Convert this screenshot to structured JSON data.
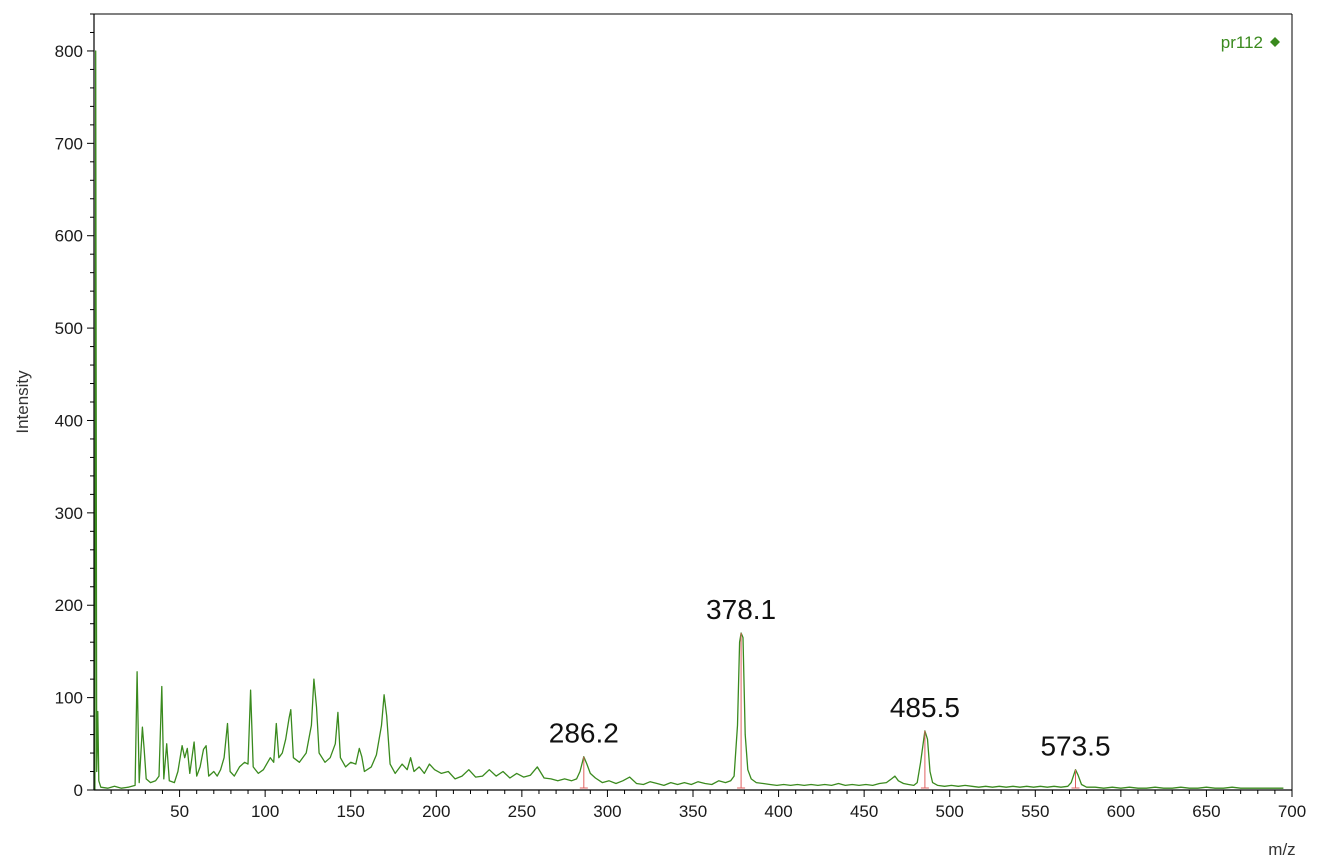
{
  "chart_data": {
    "type": "line",
    "xlabel": "m/z",
    "ylabel": "Intensity",
    "xlim": [
      0,
      700
    ],
    "ylim": [
      0,
      840
    ],
    "x_ticks": [
      50,
      100,
      150,
      200,
      250,
      300,
      350,
      400,
      450,
      500,
      550,
      600,
      650,
      700
    ],
    "y_ticks": [
      0,
      100,
      200,
      300,
      400,
      500,
      600,
      700,
      800
    ],
    "grid": false,
    "legend_position": "top-right",
    "series_color": "#3a8a1e",
    "marker_color": "#e06060",
    "series": [
      {
        "name": "pr112",
        "points": [
          [
            0.5,
            0
          ],
          [
            1.0,
            800
          ],
          [
            1.6,
            20
          ],
          [
            2.2,
            85
          ],
          [
            2.8,
            10
          ],
          [
            4,
            3
          ],
          [
            8,
            2
          ],
          [
            12,
            4
          ],
          [
            16,
            2
          ],
          [
            20,
            3
          ],
          [
            24,
            5
          ],
          [
            25.2,
            128
          ],
          [
            26.4,
            8
          ],
          [
            28.3,
            68
          ],
          [
            29.3,
            45
          ],
          [
            30.5,
            12
          ],
          [
            33,
            8
          ],
          [
            36,
            10
          ],
          [
            38,
            15
          ],
          [
            39.6,
            112
          ],
          [
            40.8,
            12
          ],
          [
            42.5,
            50
          ],
          [
            44,
            10
          ],
          [
            47,
            8
          ],
          [
            49,
            20
          ],
          [
            51.5,
            48
          ],
          [
            53,
            35
          ],
          [
            54.5,
            45
          ],
          [
            56,
            18
          ],
          [
            58.5,
            52
          ],
          [
            60,
            15
          ],
          [
            62,
            25
          ],
          [
            64,
            44
          ],
          [
            65.5,
            48
          ],
          [
            67,
            15
          ],
          [
            70,
            20
          ],
          [
            72,
            15
          ],
          [
            74,
            22
          ],
          [
            76,
            35
          ],
          [
            78,
            72
          ],
          [
            79.5,
            20
          ],
          [
            82,
            15
          ],
          [
            85,
            25
          ],
          [
            88,
            30
          ],
          [
            90,
            28
          ],
          [
            91.5,
            108
          ],
          [
            93,
            25
          ],
          [
            96,
            18
          ],
          [
            99,
            22
          ],
          [
            103,
            35
          ],
          [
            105,
            30
          ],
          [
            106.5,
            72
          ],
          [
            108,
            35
          ],
          [
            110,
            40
          ],
          [
            112,
            55
          ],
          [
            114,
            78
          ],
          [
            115,
            87
          ],
          [
            116.5,
            35
          ],
          [
            120,
            30
          ],
          [
            124,
            40
          ],
          [
            127,
            70
          ],
          [
            128.5,
            120
          ],
          [
            130,
            90
          ],
          [
            131.5,
            40
          ],
          [
            135,
            30
          ],
          [
            138,
            35
          ],
          [
            141,
            50
          ],
          [
            142.5,
            84
          ],
          [
            144,
            35
          ],
          [
            147,
            25
          ],
          [
            150,
            30
          ],
          [
            153,
            28
          ],
          [
            155,
            45
          ],
          [
            156.5,
            36
          ],
          [
            158,
            20
          ],
          [
            162,
            25
          ],
          [
            165,
            38
          ],
          [
            168,
            70
          ],
          [
            169.5,
            103
          ],
          [
            171,
            80
          ],
          [
            173,
            28
          ],
          [
            176,
            18
          ],
          [
            180,
            28
          ],
          [
            183,
            22
          ],
          [
            185,
            35
          ],
          [
            187,
            20
          ],
          [
            190,
            25
          ],
          [
            193,
            18
          ],
          [
            196,
            28
          ],
          [
            199,
            22
          ],
          [
            203,
            18
          ],
          [
            207,
            20
          ],
          [
            211,
            12
          ],
          [
            215,
            15
          ],
          [
            219,
            22
          ],
          [
            223,
            14
          ],
          [
            227,
            15
          ],
          [
            231,
            22
          ],
          [
            235,
            15
          ],
          [
            239,
            20
          ],
          [
            243,
            13
          ],
          [
            247,
            18
          ],
          [
            251,
            14
          ],
          [
            255,
            16
          ],
          [
            259,
            25
          ],
          [
            263,
            13
          ],
          [
            267,
            12
          ],
          [
            271,
            10
          ],
          [
            275,
            12
          ],
          [
            279,
            10
          ],
          [
            282,
            12
          ],
          [
            284,
            20
          ],
          [
            286.2,
            36
          ],
          [
            288,
            28
          ],
          [
            290,
            18
          ],
          [
            293,
            13
          ],
          [
            297,
            8
          ],
          [
            301,
            10
          ],
          [
            305,
            7
          ],
          [
            309,
            10
          ],
          [
            313,
            14
          ],
          [
            317,
            7
          ],
          [
            321,
            6
          ],
          [
            325,
            9
          ],
          [
            329,
            7
          ],
          [
            333,
            5
          ],
          [
            337,
            8
          ],
          [
            341,
            6
          ],
          [
            345,
            8
          ],
          [
            349,
            6
          ],
          [
            353,
            9
          ],
          [
            357,
            7
          ],
          [
            361,
            6
          ],
          [
            365,
            10
          ],
          [
            369,
            8
          ],
          [
            372,
            10
          ],
          [
            374,
            15
          ],
          [
            376,
            70
          ],
          [
            377.2,
            160
          ],
          [
            378.1,
            170
          ],
          [
            379.2,
            165
          ],
          [
            380.5,
            60
          ],
          [
            382,
            22
          ],
          [
            384,
            12
          ],
          [
            387,
            8
          ],
          [
            391,
            7
          ],
          [
            395,
            6
          ],
          [
            399,
            5
          ],
          [
            403,
            6
          ],
          [
            407,
            5
          ],
          [
            411,
            6
          ],
          [
            415,
            5
          ],
          [
            419,
            6
          ],
          [
            423,
            5
          ],
          [
            427,
            6
          ],
          [
            431,
            5
          ],
          [
            435,
            7
          ],
          [
            439,
            5
          ],
          [
            443,
            6
          ],
          [
            447,
            5
          ],
          [
            451,
            6
          ],
          [
            455,
            5
          ],
          [
            459,
            7
          ],
          [
            463,
            8
          ],
          [
            466,
            12
          ],
          [
            468,
            15
          ],
          [
            470,
            10
          ],
          [
            473,
            7
          ],
          [
            476,
            6
          ],
          [
            479,
            5
          ],
          [
            481,
            8
          ],
          [
            483,
            30
          ],
          [
            485.5,
            64
          ],
          [
            487,
            55
          ],
          [
            488.5,
            20
          ],
          [
            490,
            8
          ],
          [
            493,
            5
          ],
          [
            497,
            4
          ],
          [
            501,
            5
          ],
          [
            505,
            4
          ],
          [
            509,
            5
          ],
          [
            513,
            4
          ],
          [
            517,
            3
          ],
          [
            521,
            4
          ],
          [
            525,
            3
          ],
          [
            529,
            4
          ],
          [
            533,
            3
          ],
          [
            537,
            4
          ],
          [
            541,
            3
          ],
          [
            545,
            4
          ],
          [
            549,
            3
          ],
          [
            553,
            4
          ],
          [
            557,
            3
          ],
          [
            561,
            4
          ],
          [
            565,
            3
          ],
          [
            569,
            4
          ],
          [
            571,
            8
          ],
          [
            573.5,
            22
          ],
          [
            575,
            16
          ],
          [
            577,
            6
          ],
          [
            580,
            3
          ],
          [
            585,
            3
          ],
          [
            590,
            2
          ],
          [
            595,
            3
          ],
          [
            600,
            2
          ],
          [
            605,
            3
          ],
          [
            610,
            2
          ],
          [
            615,
            2
          ],
          [
            620,
            3
          ],
          [
            625,
            2
          ],
          [
            630,
            2
          ],
          [
            635,
            3
          ],
          [
            640,
            2
          ],
          [
            645,
            2
          ],
          [
            650,
            3
          ],
          [
            655,
            2
          ],
          [
            660,
            2
          ],
          [
            665,
            3
          ],
          [
            670,
            2
          ],
          [
            675,
            2
          ],
          [
            680,
            2
          ],
          [
            685,
            2
          ],
          [
            690,
            2
          ],
          [
            695,
            2
          ]
        ]
      }
    ],
    "annotations": [
      {
        "text": "286.2",
        "x": 286.2,
        "y": 36
      },
      {
        "text": "378.1",
        "x": 378.1,
        "y": 170
      },
      {
        "text": "485.5",
        "x": 485.5,
        "y": 64
      },
      {
        "text": "573.5",
        "x": 573.5,
        "y": 22
      }
    ]
  }
}
